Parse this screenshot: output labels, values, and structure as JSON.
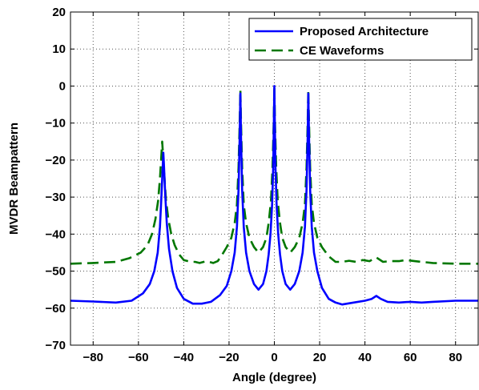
{
  "chart_data": {
    "type": "line",
    "title": "",
    "xlabel": "Angle (degree)",
    "ylabel": "MVDR Beampattern",
    "xlim": [
      -90,
      90
    ],
    "ylim": [
      -70,
      20
    ],
    "xticks": [
      -80,
      -60,
      -40,
      -20,
      0,
      20,
      40,
      60,
      80
    ],
    "yticks": [
      -70,
      -60,
      -50,
      -40,
      -30,
      -20,
      -10,
      0,
      10,
      20
    ],
    "grid": true,
    "grid_style": "dotted",
    "legend_position": "top-right",
    "series": [
      {
        "name": "Proposed Architecture",
        "color": "#0000ff",
        "line_style": "solid",
        "x": [
          -90,
          -80,
          -70,
          -63,
          -58,
          -55,
          -53,
          -51.5,
          -50.5,
          -49.8,
          -49.3,
          -49,
          -48.7,
          -48.2,
          -47.5,
          -46.5,
          -45,
          -43,
          -40,
          -36,
          -32,
          -28,
          -24,
          -21,
          -19,
          -17.5,
          -16.5,
          -15.8,
          -15.3,
          -15,
          -14.7,
          -14.2,
          -13.5,
          -12.5,
          -11,
          -9,
          -7,
          -5,
          -3.5,
          -2.5,
          -1.7,
          -1,
          -0.5,
          -0.2,
          0,
          0.2,
          0.5,
          1,
          1.7,
          2.5,
          3.5,
          5,
          7,
          9,
          11,
          12.5,
          13.5,
          14.2,
          14.7,
          15,
          15.3,
          15.8,
          16.5,
          17.5,
          19,
          21,
          24,
          27,
          30,
          35,
          40,
          43,
          45,
          47,
          50,
          55,
          60,
          65,
          70,
          80,
          90
        ],
        "y": [
          -58,
          -58.2,
          -58.5,
          -58,
          -56,
          -53.5,
          -50,
          -45,
          -38,
          -29,
          -22,
          -18,
          -22,
          -29,
          -37,
          -44,
          -50,
          -54.5,
          -57.5,
          -58.8,
          -58.8,
          -58.3,
          -56.5,
          -54,
          -50,
          -45,
          -38,
          -28,
          -14,
          -2,
          -14,
          -28,
          -38,
          -45,
          -50,
          -53.5,
          -55,
          -53.5,
          -50,
          -45.5,
          -40,
          -32,
          -22,
          -10,
          0,
          -10,
          -22,
          -32,
          -40,
          -45.5,
          -50,
          -53.5,
          -55,
          -53.5,
          -50,
          -45,
          -38,
          -28,
          -14,
          -2,
          -14,
          -28,
          -38,
          -45,
          -50,
          -54.5,
          -57.5,
          -58.5,
          -59,
          -58.5,
          -58,
          -57.5,
          -56.7,
          -57.5,
          -58.3,
          -58.5,
          -58.3,
          -58.5,
          -58.3,
          -58,
          -58
        ]
      },
      {
        "name": "CE Waveforms",
        "color": "#007700",
        "line_style": "dashed",
        "x": [
          -90,
          -80,
          -70,
          -64,
          -59,
          -56,
          -54,
          -52.5,
          -51.3,
          -50.5,
          -50,
          -49.5,
          -49,
          -48.5,
          -47.8,
          -46.8,
          -45.5,
          -44,
          -42,
          -40,
          -37,
          -35,
          -33,
          -30,
          -27,
          -25,
          -23,
          -21,
          -19,
          -17.5,
          -16.5,
          -15.8,
          -15.3,
          -15,
          -14.7,
          -14.2,
          -13.5,
          -12.5,
          -11,
          -9,
          -7,
          -5,
          -3.5,
          -2.5,
          -1.5,
          -0.8,
          -0.3,
          0,
          0.3,
          0.8,
          1.5,
          2.5,
          3.5,
          5,
          7,
          9,
          11,
          12.5,
          13.5,
          14.2,
          14.7,
          15,
          15.3,
          15.8,
          16.5,
          17.5,
          19,
          21,
          24,
          27,
          30,
          33,
          36,
          39,
          42,
          45,
          48,
          51,
          55,
          58,
          62,
          70,
          80,
          90
        ],
        "y": [
          -48,
          -47.8,
          -47.5,
          -46.5,
          -45,
          -43,
          -40,
          -36,
          -31,
          -25,
          -20,
          -15,
          -20,
          -25,
          -31,
          -36,
          -40,
          -43,
          -45.5,
          -47,
          -47.5,
          -47.5,
          -47.8,
          -47.3,
          -47.8,
          -47.3,
          -45.5,
          -43.5,
          -41,
          -37,
          -32,
          -22,
          -10,
          -1,
          -10,
          -22,
          -32,
          -37,
          -41,
          -43.5,
          -45,
          -43.5,
          -41,
          -37,
          -31,
          -22,
          -10,
          0,
          -10,
          -22,
          -31,
          -37,
          -41,
          -43.5,
          -45,
          -43.5,
          -41,
          -37,
          -32,
          -22,
          -10,
          -1,
          -10,
          -22,
          -32,
          -37,
          -41,
          -43.5,
          -46,
          -47.5,
          -47.5,
          -47.2,
          -47.5,
          -47,
          -47.3,
          -46.3,
          -47.5,
          -47.3,
          -47.3,
          -47,
          -47.3,
          -47.8,
          -48,
          -48
        ]
      }
    ]
  }
}
